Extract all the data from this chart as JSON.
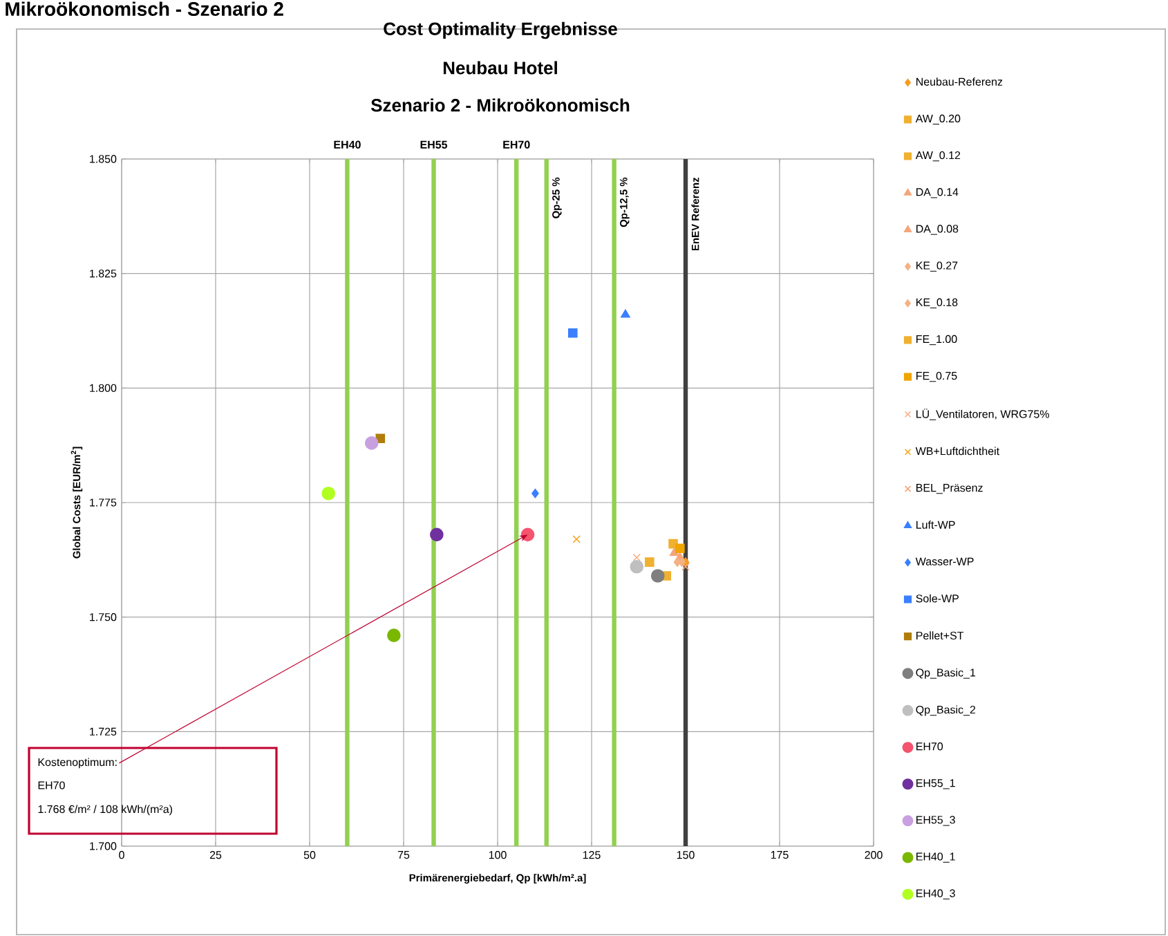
{
  "chart_data": {
    "type": "scatter",
    "title": "Cost Optimality Ergebnisse",
    "subtitle": "Neubau Hotel",
    "xlabel": "Primärenergiebedarf, Qp [kWh/m².a]",
    "ylabel": "Global Costs [EUR/m$^{2}$]",
    "xlim": [
      0,
      200
    ],
    "ylim": [
      1.7,
      1.85
    ],
    "xticks": [
      0,
      25,
      50,
      75,
      100,
      125,
      150,
      175,
      200
    ],
    "yticks": [
      {
        "value": 1.7,
        "label": "1.700"
      },
      {
        "value": 1.725,
        "label": "1.725"
      },
      {
        "value": 1.75,
        "label": "1.750"
      },
      {
        "value": 1.775,
        "label": "1.775"
      },
      {
        "value": 1.8,
        "label": "1.800"
      },
      {
        "value": 1.825,
        "label": "1.825"
      },
      {
        "value": 1.85,
        "label": "1.850"
      }
    ],
    "grid": true,
    "legend": "right",
    "ref_lines": [
      {
        "axis": "x",
        "value": 60,
        "label": "EH40",
        "color": "#92d050"
      },
      {
        "axis": "x",
        "value": 83,
        "label": "EH55",
        "color": "#92d050"
      },
      {
        "axis": "x",
        "value": 105,
        "label": "EH70",
        "color": "#92d050"
      },
      {
        "axis": "x",
        "value": 113,
        "label": "Qp-25 %",
        "color": "#92d050"
      },
      {
        "axis": "x",
        "value": 131,
        "label": "Qp-12,5 %",
        "color": "#92d050"
      },
      {
        "axis": "x",
        "value": 150,
        "label": "EnEV Referenz",
        "color": "#404040"
      }
    ],
    "series": [
      {
        "name": "Neubau-Referenz",
        "color": "#f59b1f",
        "marker": "diamond",
        "x": [
          150
        ],
        "values": [
          1.762
        ]
      },
      {
        "name": "AW_0.20",
        "color": "#f0b030",
        "marker": "square",
        "x": [
          140.4
        ],
        "values": [
          1.762
        ]
      },
      {
        "name": "AW_0.12",
        "color": "#f0b030",
        "marker": "square",
        "x": [
          144.9
        ],
        "values": [
          1.759
        ]
      },
      {
        "name": "DA_0.14",
        "color": "#f4a57a",
        "marker": "triangle",
        "x": [
          147
        ],
        "values": [
          1.764
        ]
      },
      {
        "name": "DA_0.08",
        "color": "#f4a57a",
        "marker": "triangle",
        "x": [
          148.5
        ],
        "values": [
          1.763
        ]
      },
      {
        "name": "KE_0.27",
        "color": "#f4b183",
        "marker": "diamond",
        "x": [
          147.8
        ],
        "values": [
          1.762
        ]
      },
      {
        "name": "KE_0.18",
        "color": "#f4b183",
        "marker": "diamond",
        "x": [
          149
        ],
        "values": [
          1.762
        ]
      },
      {
        "name": "FE_1.00",
        "color": "#f0b030",
        "marker": "square",
        "x": [
          146.7
        ],
        "values": [
          1.766
        ]
      },
      {
        "name": "FE_0.75",
        "color": "#f0a500",
        "marker": "square",
        "x": [
          148.5
        ],
        "values": [
          1.765
        ]
      },
      {
        "name": "LÜ_Ventilatoren, WRG75%",
        "color": "#f8b08a",
        "marker": "cross",
        "x": [
          137
        ],
        "values": [
          1.763
        ]
      },
      {
        "name": "WB+Luftdichtheit",
        "color": "#f5a623",
        "marker": "cross",
        "x": [
          121
        ],
        "values": [
          1.767
        ]
      },
      {
        "name": "BEL_Präsenz",
        "color": "#f4a57a",
        "marker": "cross",
        "x": [
          150
        ],
        "values": [
          1.761
        ]
      },
      {
        "name": "Luft-WP",
        "color": "#3a7fff",
        "marker": "triangle",
        "x": [
          134
        ],
        "values": [
          1.816
        ]
      },
      {
        "name": "Wasser-WP",
        "color": "#3a7fff",
        "marker": "diamond",
        "x": [
          110
        ],
        "values": [
          1.777
        ]
      },
      {
        "name": "Sole-WP",
        "color": "#3a7fff",
        "marker": "square",
        "x": [
          120
        ],
        "values": [
          1.812
        ]
      },
      {
        "name": "Pellet+ST",
        "color": "#b07d0a",
        "marker": "square",
        "x": [
          68.8
        ],
        "values": [
          1.789
        ]
      },
      {
        "name": "Qp_Basic_1",
        "color": "#7f7f7f",
        "marker": "circle",
        "x": [
          142.6
        ],
        "values": [
          1.759
        ]
      },
      {
        "name": "Qp_Basic_2",
        "color": "#bfbfbf",
        "marker": "circle",
        "x": [
          137
        ],
        "values": [
          1.761
        ]
      },
      {
        "name": "EH70",
        "color": "#f4546e",
        "marker": "circle",
        "x": [
          108
        ],
        "values": [
          1.768
        ]
      },
      {
        "name": "EH55_1",
        "color": "#7030a0",
        "marker": "circle",
        "x": [
          83.8
        ],
        "values": [
          1.768
        ]
      },
      {
        "name": "EH55_3",
        "color": "#c8a0e0",
        "marker": "circle",
        "x": [
          66.5
        ],
        "values": [
          1.788
        ]
      },
      {
        "name": "EH40_1",
        "color": "#7ab800",
        "marker": "circle",
        "x": [
          72.4
        ],
        "values": [
          1.746
        ]
      },
      {
        "name": "EH40_3",
        "color": "#b0ff20",
        "marker": "circle",
        "x": [
          55
        ],
        "values": [
          1.777
        ]
      }
    ],
    "annotations": [
      {
        "text": "Kostenoptimum:",
        "x": 108,
        "y": 1.768
      },
      "EH70",
      "1.768 €/m² / 108 kWh/(m²a)",
      "Mikroökonomisch - Szenario 2",
      "Szenario 2 - Mikroökonomisch"
    ]
  }
}
